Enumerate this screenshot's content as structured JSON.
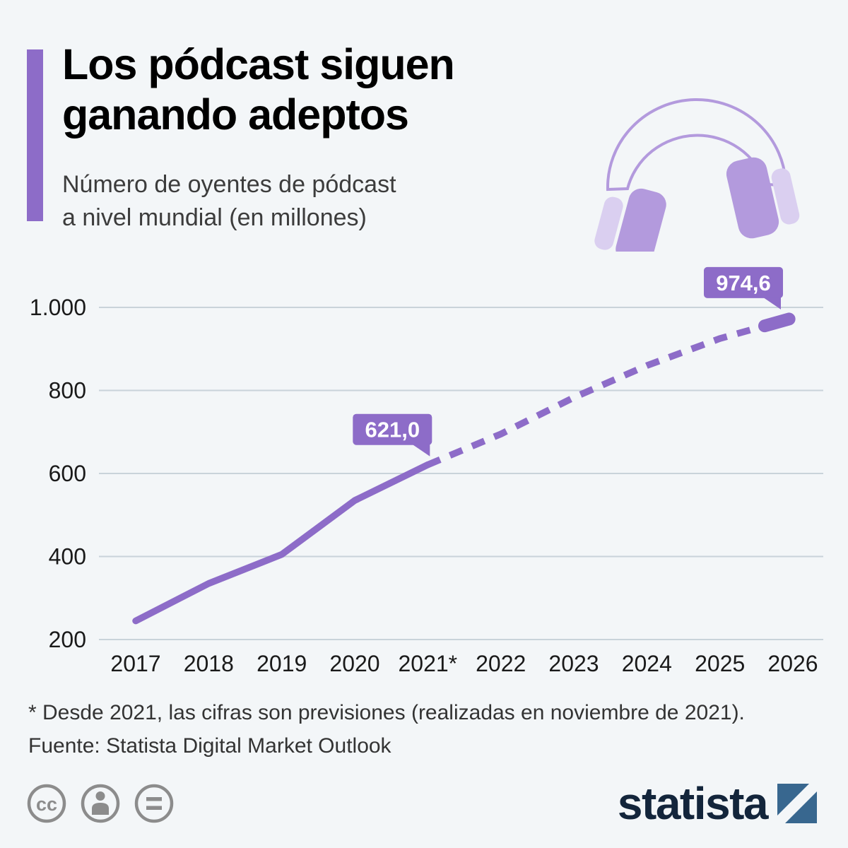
{
  "colors": {
    "background": "#f3f6f8",
    "accent": "#8d6cc8",
    "headphone": "#b39add",
    "headphone_light": "#dacff0",
    "grid": "#c9d3da",
    "text": "#1a1a1a",
    "subtitle": "#3c3c3c",
    "footnote": "#333333",
    "logo_navy": "#13253b",
    "logo_blue": "#38678f",
    "icon_gray": "#8c8c8c",
    "badge_text": "#ffffff"
  },
  "header": {
    "title_lines": [
      "Los pódcast siguen",
      "ganando adeptos"
    ],
    "subtitle_lines": [
      "Número de oyentes de pódcast",
      "a nivel mundial (en millones)"
    ],
    "decoration_icon": "headphones-icon"
  },
  "chart_data": {
    "type": "line",
    "title": "Número de oyentes de pódcast a nivel mundial (en millones)",
    "categories": [
      "2017",
      "2018",
      "2019",
      "2020",
      "2021*",
      "2022",
      "2023",
      "2024",
      "2025",
      "2026"
    ],
    "values": [
      245,
      335,
      405,
      535,
      621.0,
      695,
      783,
      860,
      925,
      974.6
    ],
    "solid_until_index": 4,
    "forecast_note": "Valores desde 2021 son previsiones (línea discontinua)",
    "ylim": [
      200,
      1000
    ],
    "yticks": [
      200,
      400,
      600,
      800,
      1000
    ],
    "ytick_labels": [
      "200",
      "400",
      "600",
      "800",
      "1.000"
    ],
    "grid": true,
    "legend": "none",
    "annotations": [
      {
        "index": 4,
        "label": "621,0"
      },
      {
        "index": 9,
        "label": "974,6"
      }
    ]
  },
  "footer": {
    "footnote": "* Desde 2021, las cifras son previsiones (realizadas en noviembre de 2021).",
    "source": "Fuente: Statista Digital Market Outlook"
  },
  "brand": {
    "logo_text": "statista",
    "license_icons": [
      "cc-icon",
      "attribution-icon",
      "equal-icon"
    ]
  }
}
